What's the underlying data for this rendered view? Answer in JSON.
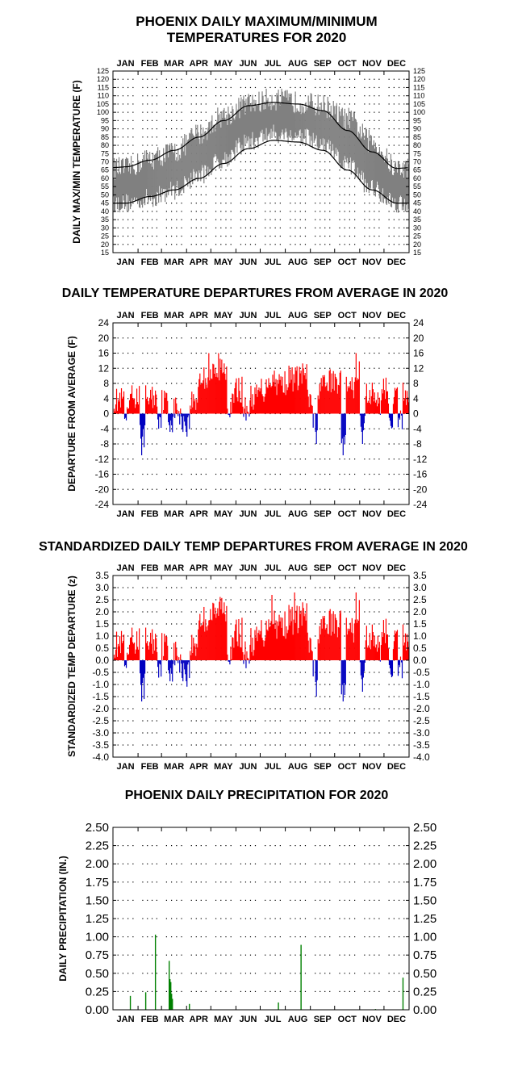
{
  "chart_data": [
    {
      "type": "area",
      "title": "PHOENIX DAILY MAXIMUM/MINIMUM",
      "subtitle": "TEMPERATURES FOR 2020",
      "ylabel": "DAILY MAX/MIN TEMPERATURE (F)",
      "months": [
        "JAN",
        "FEB",
        "MAR",
        "APR",
        "MAY",
        "JUN",
        "JUL",
        "AUG",
        "SEP",
        "OCT",
        "NOV",
        "DEC"
      ],
      "ylim": [
        15,
        125
      ],
      "yticks": [
        "125",
        "120",
        "115",
        "110",
        "105",
        "100",
        "95",
        "90",
        "85",
        "80",
        "75",
        "70",
        "65",
        "60",
        "55",
        "50",
        "45",
        "40",
        "35",
        "30",
        "25",
        "20",
        "15"
      ],
      "grid": "dotted",
      "series": [
        {
          "values_by_month_mid": {
            "max_approx": [
              66,
              72,
              76,
              87,
              98,
              105,
              108,
              106,
              104,
              96,
              82,
              66
            ],
            "min_approx": [
              45,
              48,
              53,
              62,
              72,
              82,
              87,
              86,
              80,
              68,
              54,
              45
            ]
          }
        },
        {
          "values_by_month_mid": [
            67,
            71,
            77,
            85,
            95,
            104,
            106,
            105,
            101,
            89,
            76,
            66
          ]
        },
        {
          "values_by_month_mid": [
            45,
            49,
            53,
            60,
            69,
            78,
            83,
            82,
            77,
            65,
            53,
            45
          ]
        }
      ]
    },
    {
      "type": "bar",
      "title": "DAILY TEMPERATURE DEPARTURES FROM AVERAGE IN 2020",
      "ylabel": "DEPARTURE FROM AVERAGE (F)",
      "months": [
        "JAN",
        "FEB",
        "MAR",
        "APR",
        "MAY",
        "JUN",
        "JUL",
        "AUG",
        "SEP",
        "OCT",
        "NOV",
        "DEC"
      ],
      "ylim": [
        -24,
        24
      ],
      "yticks": [
        "24",
        "20",
        "16",
        "12",
        "8",
        "4",
        "0",
        "-4",
        "-8",
        "-12",
        "-16",
        "-20",
        "-24"
      ],
      "positive_color": "#ff0000",
      "negative_color": "#0000c0",
      "grid": "dotted",
      "notable_values": [
        {
          "date": "Feb 5",
          "value": -11
        },
        {
          "date": "Apr 28",
          "value": 16
        },
        {
          "date": "May 10",
          "value": 16
        },
        {
          "date": "Sep 8",
          "value": -8
        },
        {
          "date": "Oct 11",
          "value": -11
        },
        {
          "date": "Oct 27",
          "value": 16
        },
        {
          "date": "Nov 4",
          "value": -8
        }
      ]
    },
    {
      "type": "bar",
      "title": "STANDARDIZED DAILY TEMP DEPARTURES FROM AVERAGE IN 2020",
      "ylabel": "STANDARDIZED TEMP DEPARTURE (z)",
      "months": [
        "JAN",
        "FEB",
        "MAR",
        "APR",
        "MAY",
        "JUN",
        "JUL",
        "AUG",
        "SEP",
        "OCT",
        "NOV",
        "DEC"
      ],
      "ylim": [
        -4.0,
        3.5
      ],
      "yticks": [
        "3.5",
        "3.0",
        "2.5",
        "2.0",
        "1.5",
        "1.0",
        "0.5",
        "0.0",
        "-0.5",
        "-1.0",
        "-1.5",
        "-2.0",
        "-2.5",
        "-3.0",
        "-3.5",
        "-4.0"
      ],
      "positive_color": "#ff0000",
      "negative_color": "#0000c0",
      "grid": "dotted",
      "notable_values": [
        {
          "date": "Feb 5",
          "value": -1.7
        },
        {
          "date": "Jul 15",
          "value": 2.7
        },
        {
          "date": "Aug 12",
          "value": 2.8
        },
        {
          "date": "Sep 8",
          "value": -1.5
        },
        {
          "date": "Oct 11",
          "value": -1.7
        },
        {
          "date": "Oct 27",
          "value": 2.8
        },
        {
          "date": "Nov 4",
          "value": -1.3
        }
      ]
    },
    {
      "type": "bar",
      "title": "PHOENIX DAILY PRECIPITATION FOR 2020",
      "ylabel": "DAILY PRECIPITATION (IN.)",
      "months": [
        "JAN",
        "FEB",
        "MAR",
        "APR",
        "MAY",
        "JUN",
        "JUL",
        "AUG",
        "SEP",
        "OCT",
        "NOV",
        "DEC"
      ],
      "ylim": [
        0,
        2.5
      ],
      "yticks": [
        "2.50",
        "2.25",
        "2.00",
        "1.75",
        "1.50",
        "1.25",
        "1.00",
        "0.75",
        "0.50",
        "0.25",
        "0.00"
      ],
      "bar_color": "#008000",
      "grid": "dotted",
      "values": [
        {
          "date": "Jan 22",
          "value": 0.19
        },
        {
          "date": "Feb 10",
          "value": 0.24
        },
        {
          "date": "Feb 22",
          "value": 1.03
        },
        {
          "date": "Mar 10",
          "value": 0.67
        },
        {
          "date": "Mar 11",
          "value": 0.42
        },
        {
          "date": "Mar 12",
          "value": 0.38
        },
        {
          "date": "Mar 13",
          "value": 0.22
        },
        {
          "date": "Mar 14",
          "value": 0.15
        },
        {
          "date": "Apr 4",
          "value": 0.08
        },
        {
          "date": "Jul 23",
          "value": 0.1
        },
        {
          "date": "Aug 20",
          "value": 0.89
        },
        {
          "date": "Nov 20",
          "value": 0.01
        },
        {
          "date": "Dec 24",
          "value": 0.44
        }
      ]
    }
  ]
}
